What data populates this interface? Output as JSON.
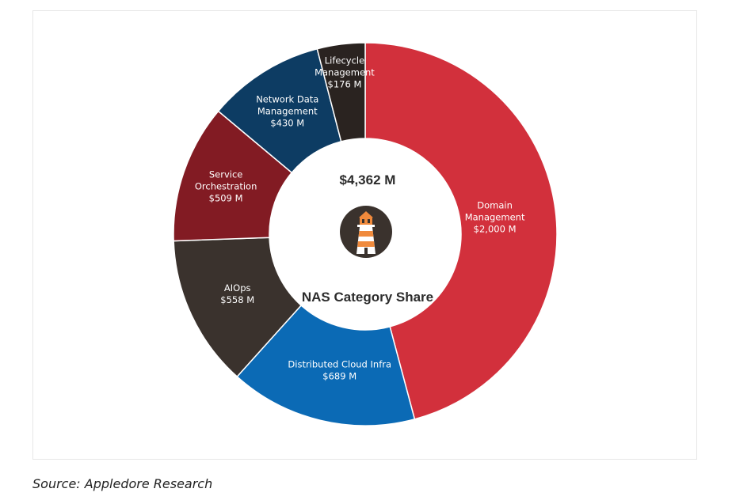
{
  "chart_data": {
    "type": "pie",
    "variant": "donut",
    "center_total": "$4,362 M",
    "center_title": "NAS Category Share",
    "unit": "$ M",
    "slices": [
      {
        "name": "Domain Management",
        "label_lines": [
          "Domain",
          "Management",
          "$2,000 M"
        ],
        "value": 2000,
        "color": "#d2303c"
      },
      {
        "name": "Distributed Cloud Infra",
        "label_lines": [
          "Distributed Cloud Infra",
          "$689 M"
        ],
        "value": 689,
        "color": "#0b6ab5"
      },
      {
        "name": "AIOps",
        "label_lines": [
          "AIOps",
          "$558 M"
        ],
        "value": 558,
        "color": "#3a322d"
      },
      {
        "name": "Service Orchestration",
        "label_lines": [
          "Service",
          "Orchestration",
          "$509 M"
        ],
        "value": 509,
        "color": "#821b23"
      },
      {
        "name": "Network Data Management",
        "label_lines": [
          "Network Data",
          "Management",
          "$430 M"
        ],
        "value": 430,
        "color": "#0d3c63"
      },
      {
        "name": "Lifecycle Management",
        "label_lines": [
          "Lifecycle",
          "Management",
          "$176 M"
        ],
        "value": 176,
        "color": "#2a2320"
      }
    ],
    "logo": "lighthouse-icon",
    "logo_colors": {
      "circle": "#3a322d",
      "accent": "#f08a3c",
      "tower": "#ffffff"
    }
  },
  "source": "Source: Appledore Research"
}
